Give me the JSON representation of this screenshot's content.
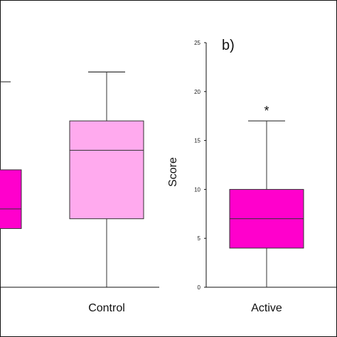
{
  "chart_data": [
    {
      "type": "box",
      "title": "",
      "xlabel": "",
      "ylabel": "",
      "ylim": [
        0,
        25
      ],
      "categories": [
        "",
        "Control"
      ],
      "boxes": [
        {
          "category": "",
          "min": 0,
          "q1": 6,
          "median": 8,
          "q3": 12,
          "max": 21,
          "color": "#ff00cc"
        },
        {
          "category": "Control",
          "min": 0,
          "q1": 7,
          "median": 14,
          "q3": 17,
          "max": 22,
          "color": "#ffaaee"
        }
      ]
    },
    {
      "type": "box",
      "panel_label": "b)",
      "title": "",
      "xlabel": "",
      "ylabel": "Score",
      "ylim": [
        0,
        25
      ],
      "yticks": [
        "0",
        "5",
        "10",
        "15",
        "20",
        "25"
      ],
      "categories": [
        "Active"
      ],
      "boxes": [
        {
          "category": "Active",
          "min": 0,
          "q1": 4,
          "median": 7,
          "q3": 10,
          "max": 17,
          "color": "#ff00cc",
          "annotation": "*"
        }
      ]
    }
  ]
}
